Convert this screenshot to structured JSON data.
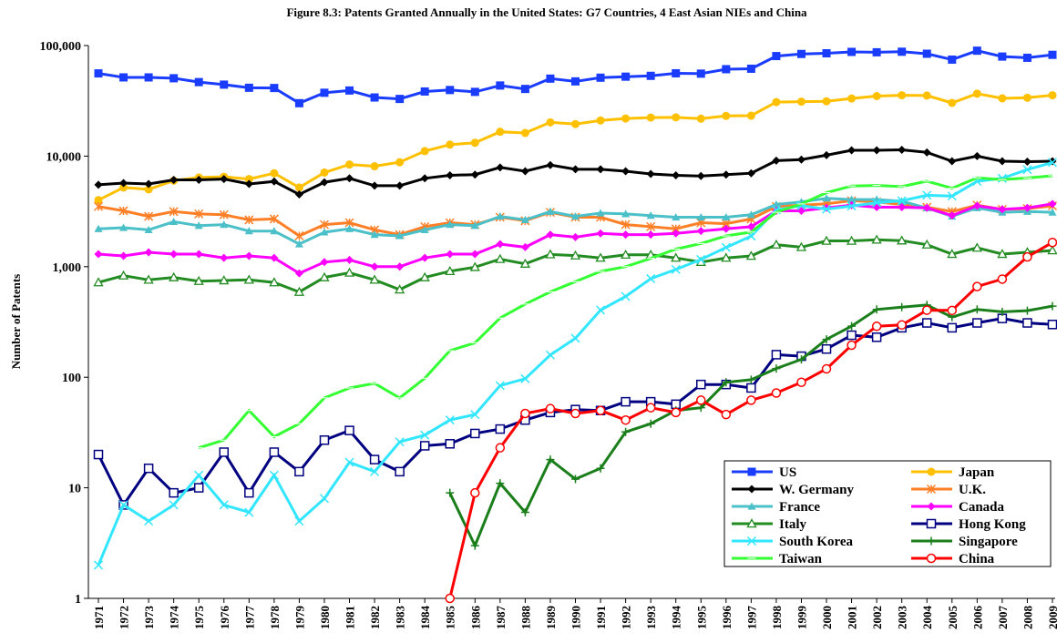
{
  "chart_data": {
    "type": "line",
    "title": "Figure 8.3: Patents Granted Annually in the United States: G7 Countries, 4 East Asian NIEs and China",
    "y_label": "Number of Patents",
    "log_y": true,
    "ylim": [
      1,
      100000
    ],
    "yticks": [
      1,
      10,
      100,
      {
        "value": 1000,
        "label": "1,000"
      },
      {
        "value": 10000,
        "label": "10,000"
      },
      {
        "value": 100000,
        "label": "100,000"
      }
    ],
    "categories": [
      "1971",
      "1972",
      "1973",
      "1974",
      "1975",
      "1976",
      "1977",
      "1978",
      "1979",
      "1980",
      "1981",
      "1982",
      "1983",
      "1984",
      "1985",
      "1986",
      "1987",
      "1988",
      "1989",
      "1990",
      "1991",
      "1992",
      "1993",
      "1994",
      "1995",
      "1996",
      "1997",
      "1998",
      "1999",
      "2000",
      "2001",
      "2002",
      "2003",
      "2004",
      "2005",
      "2006",
      "2007",
      "2008",
      "2009"
    ],
    "series": [
      {
        "name": "US",
        "color": "#1a3cff",
        "marker": "square",
        "values": [
          55988,
          51500,
          51500,
          50600,
          46700,
          44300,
          41500,
          41300,
          30100,
          37400,
          39200,
          33900,
          32900,
          38400,
          39600,
          38100,
          43500,
          40500,
          50200,
          47400,
          51200,
          52300,
          53200,
          56100,
          55700,
          61100,
          61700,
          80300,
          83900,
          85100,
          87600,
          86900,
          87900,
          84300,
          74600,
          89800,
          79500,
          77500,
          82400
        ]
      },
      {
        "name": "Japan",
        "color": "#ffc000",
        "marker": "circle",
        "values": [
          4000,
          5200,
          5000,
          6000,
          6400,
          6500,
          6200,
          7000,
          5200,
          7100,
          8400,
          8100,
          8800,
          11100,
          12700,
          13200,
          16600,
          16200,
          20200,
          19500,
          21000,
          21900,
          22300,
          22400,
          21800,
          23100,
          23200,
          30800,
          31100,
          31300,
          33200,
          34900,
          35500,
          35300,
          30300,
          36700,
          33300,
          33700,
          35500
        ]
      },
      {
        "name": "W. Germany",
        "color": "#000000",
        "marker": "diamond",
        "values": [
          5500,
          5700,
          5600,
          6100,
          6100,
          6200,
          5600,
          5900,
          4500,
          5800,
          6300,
          5400,
          5400,
          6300,
          6700,
          6800,
          7900,
          7300,
          8300,
          7600,
          7600,
          7300,
          6900,
          6700,
          6600,
          6800,
          7000,
          9100,
          9300,
          10200,
          11300,
          11300,
          11400,
          10800,
          9000,
          10000,
          9000,
          8900,
          9000
        ]
      },
      {
        "name": "U.K.",
        "color": "#ff7f27",
        "marker": "asterisk",
        "values": [
          3500,
          3200,
          2850,
          3150,
          3000,
          2950,
          2650,
          2700,
          1900,
          2400,
          2500,
          2150,
          1950,
          2300,
          2500,
          2400,
          2800,
          2600,
          3100,
          2800,
          2800,
          2400,
          2300,
          2200,
          2500,
          2450,
          2700,
          3500,
          3600,
          3700,
          3950,
          3850,
          3650,
          3450,
          3150,
          3600,
          3300,
          3350,
          3550
        ]
      },
      {
        "name": "France",
        "color": "#4bc0c8",
        "marker": "triangle",
        "values": [
          2200,
          2250,
          2150,
          2550,
          2350,
          2400,
          2100,
          2100,
          1600,
          2050,
          2200,
          1950,
          1900,
          2150,
          2400,
          2350,
          2850,
          2650,
          3150,
          2850,
          3050,
          3000,
          2900,
          2800,
          2800,
          2800,
          2950,
          3650,
          3850,
          4150,
          4050,
          4050,
          3900,
          3400,
          2850,
          3400,
          3100,
          3150,
          3100
        ]
      },
      {
        "name": "Canada",
        "color": "#ff00ff",
        "marker": "diamond",
        "values": [
          1300,
          1250,
          1350,
          1300,
          1300,
          1200,
          1250,
          1200,
          870,
          1100,
          1150,
          1000,
          1000,
          1200,
          1300,
          1300,
          1600,
          1500,
          1950,
          1850,
          2000,
          1950,
          1950,
          2000,
          2100,
          2200,
          2300,
          3200,
          3200,
          3400,
          3600,
          3450,
          3450,
          3400,
          2900,
          3550,
          3300,
          3400,
          3700
        ]
      },
      {
        "name": "Italy",
        "color": "#228b22",
        "marker": "triangle-open",
        "values": [
          720,
          830,
          760,
          800,
          740,
          750,
          760,
          720,
          590,
          800,
          880,
          760,
          620,
          800,
          910,
          990,
          1170,
          1060,
          1290,
          1260,
          1200,
          1280,
          1280,
          1200,
          1100,
          1200,
          1250,
          1580,
          1500,
          1710,
          1710,
          1750,
          1720,
          1580,
          1300,
          1480,
          1300,
          1350,
          1400
        ]
      },
      {
        "name": "Hong Kong",
        "color": "#000080",
        "marker": "square-open",
        "values": [
          20,
          7,
          15,
          9,
          10,
          21,
          9,
          21,
          14,
          27,
          33,
          18,
          14,
          24,
          25,
          31,
          34,
          41,
          48,
          51,
          50,
          60,
          60,
          57,
          86,
          86,
          80,
          160,
          155,
          180,
          240,
          230,
          280,
          310,
          280,
          310,
          340,
          310,
          300
        ]
      },
      {
        "name": "South Korea",
        "color": "#33e6ff",
        "marker": "x",
        "values": [
          2,
          7,
          5,
          7,
          13,
          7,
          6,
          13,
          5,
          8,
          17,
          14,
          26,
          30,
          41,
          46,
          84,
          97,
          159,
          225,
          405,
          538,
          779,
          943,
          1161,
          1493,
          1891,
          3259,
          3562,
          3314,
          3538,
          3786,
          3944,
          4428,
          4352,
          5908,
          6295,
          7549,
          8762
        ]
      },
      {
        "name": "Singapore",
        "color": "#1a7f1a",
        "marker": "plus",
        "values": [
          null,
          null,
          null,
          null,
          null,
          null,
          null,
          null,
          null,
          null,
          null,
          null,
          null,
          null,
          9,
          3,
          11,
          6,
          18,
          12,
          15,
          32,
          38,
          50,
          53,
          90,
          95,
          120,
          145,
          220,
          290,
          410,
          430,
          450,
          350,
          410,
          390,
          400,
          440
        ]
      },
      {
        "name": "Taiwan",
        "color": "#33ff33",
        "marker": "dash",
        "values": [
          null,
          null,
          null,
          null,
          23,
          27,
          50,
          29,
          38,
          65,
          80,
          88,
          65,
          98,
          174,
          205,
          343,
          459,
          591,
          732,
          906,
          1000,
          1189,
          1443,
          1620,
          1897,
          2057,
          3100,
          3693,
          4667,
          5371,
          5431,
          5298,
          5938,
          5118,
          6361,
          6128,
          6339,
          6642
        ]
      },
      {
        "name": "China",
        "color": "#ff0000",
        "marker": "circle-open",
        "values": [
          null,
          null,
          null,
          null,
          null,
          null,
          null,
          null,
          null,
          null,
          null,
          null,
          null,
          null,
          1,
          9,
          23,
          47,
          52,
          47,
          50,
          41,
          53,
          48,
          62,
          46,
          62,
          72,
          90,
          119,
          195,
          289,
          297,
          404,
          402,
          661,
          772,
          1225,
          1655
        ]
      }
    ]
  }
}
